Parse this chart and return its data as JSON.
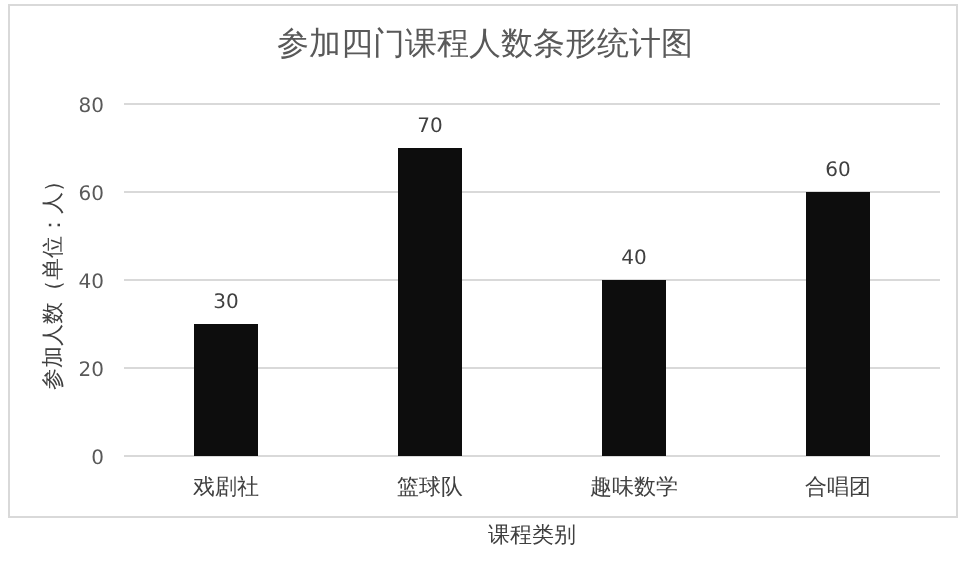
{
  "chart_data": {
    "type": "bar",
    "title": "参加四门课程人数条形统计图",
    "xlabel": "课程类别",
    "ylabel": "参加人数（单位：人）",
    "categories": [
      "戏剧社",
      "篮球队",
      "趣味数学",
      "合唱团"
    ],
    "values": [
      30,
      70,
      40,
      60
    ],
    "color": "#0d0d0d",
    "ylim": [
      0,
      80
    ],
    "yticks": [
      0,
      20,
      40,
      60,
      80
    ],
    "grid": "y",
    "data_labels": true
  }
}
